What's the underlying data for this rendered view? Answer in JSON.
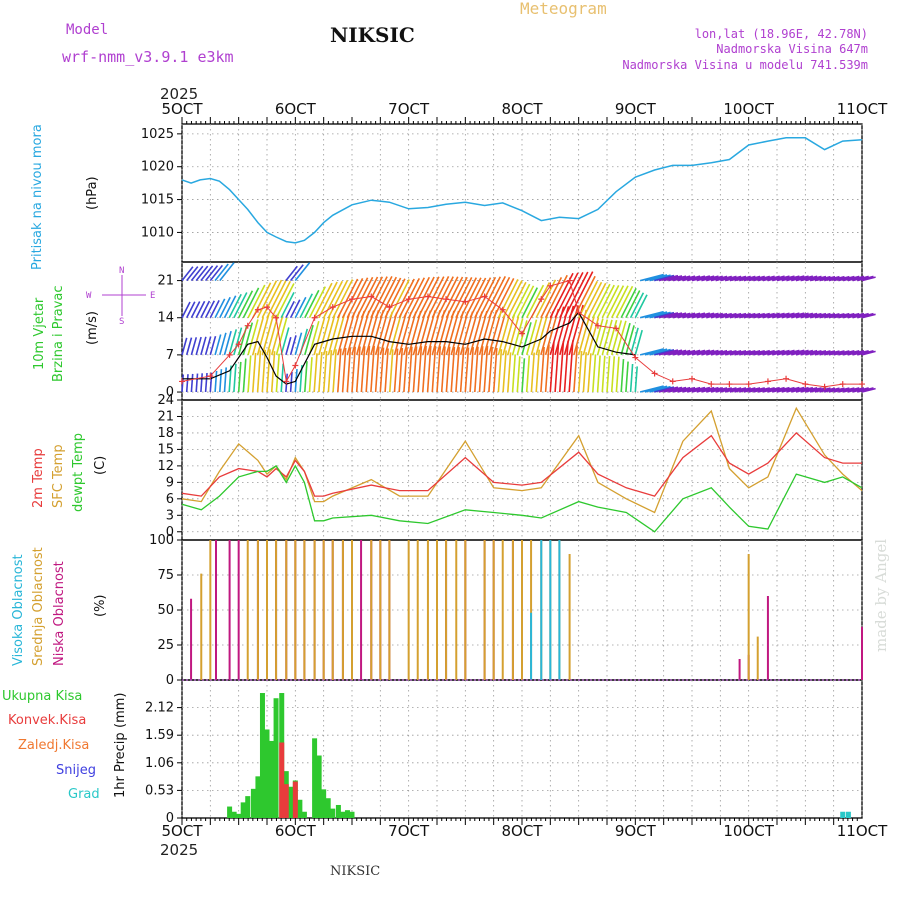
{
  "header": {
    "model_label": "Model",
    "model_name": "wrf-nmm_v3.9.1 e3km",
    "station": "NIKSIC",
    "product": "Meteogram",
    "coords": "lon,lat (18.96E, 42.78N)",
    "elevation": "Nadmorska Visina 647m",
    "model_elevation": "Nadmorska Visina u modelu 741.539m"
  },
  "footer": {
    "station": "NIKSIC",
    "credit": "made by Angel"
  },
  "colors": {
    "pressure": "#29a8e0",
    "temp": "#e83c3c",
    "sfc": "#d4a030",
    "dew": "#2ec82e",
    "high_cloud": "#29b6d8",
    "mid_cloud": "#d4a030",
    "low_cloud": "#c01880",
    "total_precip": "#2ec82e",
    "conv_precip": "#e83c3c",
    "frz_precip": "#f07830",
    "snow": "#4040e0",
    "hail": "#29c8c8",
    "header_purple": "#b040d0",
    "header_gold": "#e8c070"
  },
  "time_axis": {
    "year": "2025",
    "ticks": [
      "5OCT",
      "6OCT",
      "7OCT",
      "8OCT",
      "9OCT",
      "10OCT",
      "11OCT"
    ]
  },
  "chart_data": [
    {
      "type": "line",
      "name": "pressure",
      "ylabel": "Pritisak na nivou mora",
      "unit": "(hPa)",
      "yticks": [
        1010,
        1015,
        1020,
        1025
      ],
      "ylim": [
        1005.5,
        1026.5
      ],
      "x": [
        0,
        0.08,
        0.16,
        0.25,
        0.33,
        0.42,
        0.5,
        0.58,
        0.67,
        0.75,
        0.83,
        0.92,
        1.0,
        1.08,
        1.17,
        1.25,
        1.33,
        1.5,
        1.67,
        1.83,
        2.0,
        2.17,
        2.33,
        2.5,
        2.67,
        2.83,
        3.0,
        3.17,
        3.33,
        3.5,
        3.67,
        3.83,
        4.0,
        4.17,
        4.33,
        4.5,
        4.67,
        4.83,
        5.0,
        5.17,
        5.33,
        5.5,
        5.67,
        5.83,
        6.0
      ],
      "values": [
        1018,
        1017.5,
        1018,
        1018.2,
        1017.8,
        1016.5,
        1015,
        1013.5,
        1011.5,
        1010,
        1009.3,
        1008.6,
        1008.4,
        1008.8,
        1010,
        1011.5,
        1012.6,
        1014.2,
        1014.9,
        1014.6,
        1013.6,
        1013.8,
        1014.3,
        1014.6,
        1014.1,
        1014.5,
        1013.3,
        1011.8,
        1012.3,
        1012.1,
        1013.5,
        1016.2,
        1018.4,
        1019.5,
        1020.2,
        1020.2,
        1020.6,
        1021.1,
        1023.3,
        1023.9,
        1024.4,
        1024.4,
        1022.6,
        1023.9,
        1024.1
      ]
    },
    {
      "type": "line",
      "name": "wind",
      "ylabel": "10m Vjetar",
      "ylabel2": "Brzina i Pravac",
      "unit": "(m/s)",
      "compass": {
        "n": "N",
        "s": "S",
        "w": "W",
        "e": "E"
      },
      "yticks": [
        0,
        7,
        14,
        21
      ],
      "ylim": [
        -1.5,
        24.5
      ],
      "series": [
        {
          "name": "speed",
          "color": "#000000",
          "x": [
            0,
            0.25,
            0.42,
            0.5,
            0.58,
            0.67,
            0.75,
            0.83,
            0.92,
            1.0,
            1.17,
            1.33,
            1.5,
            1.67,
            1.83,
            2.0,
            2.17,
            2.33,
            2.5,
            2.67,
            2.83,
            3.0,
            3.17,
            3.25,
            3.42,
            3.5,
            3.67,
            3.83,
            4.0
          ],
          "values": [
            2.5,
            2.5,
            4,
            6.5,
            9,
            9.5,
            6.5,
            3,
            1.5,
            2,
            9,
            10,
            10.5,
            10.5,
            9.5,
            9,
            9.5,
            9.5,
            9,
            10,
            9.5,
            8.5,
            10,
            11.5,
            13,
            15,
            8.5,
            7.5,
            7
          ]
        },
        {
          "name": "gust",
          "color": "#e83c3c",
          "x": [
            0,
            0.25,
            0.42,
            0.5,
            0.58,
            0.67,
            0.75,
            0.83,
            0.92,
            1.0,
            1.17,
            1.33,
            1.5,
            1.67,
            1.83,
            2.0,
            2.17,
            2.33,
            2.5,
            2.67,
            2.83,
            3.0,
            3.17,
            3.25,
            3.42,
            3.5,
            3.67,
            3.83,
            4.0,
            4.17,
            4.33,
            4.5,
            4.67,
            4.83,
            5.0,
            5.17,
            5.33,
            5.5,
            5.67,
            5.83,
            6.0
          ],
          "values": [
            2,
            3,
            7,
            9,
            12.5,
            15.5,
            16,
            14,
            2,
            5,
            14,
            16,
            17.5,
            18,
            16,
            17.5,
            18,
            17.5,
            17,
            18,
            15.5,
            11,
            17.5,
            20,
            21,
            15,
            12.5,
            12,
            6.5,
            3.5,
            2,
            2.5,
            1.5,
            1.5,
            1.5,
            2,
            2.5,
            1.5,
            1,
            1.5,
            1.5
          ]
        }
      ]
    },
    {
      "type": "line",
      "name": "temperature",
      "ylabels": [
        "2m Temp",
        "SFC Temp",
        "dewpt Temp"
      ],
      "unit": "(C)",
      "yticks": [
        0,
        3,
        6,
        9,
        12,
        15,
        18,
        21,
        24
      ],
      "ylim": [
        -1.5,
        24
      ],
      "x": [
        0,
        0.17,
        0.33,
        0.5,
        0.67,
        0.75,
        0.83,
        0.92,
        1.0,
        1.08,
        1.17,
        1.25,
        1.33,
        1.67,
        1.92,
        2.17,
        2.5,
        2.75,
        3.0,
        3.17,
        3.5,
        3.67,
        3.92,
        4.17,
        4.42,
        4.67,
        4.83,
        5.0,
        5.17,
        5.42,
        5.67,
        5.83,
        6.0
      ],
      "series": [
        {
          "name": "2m Temp",
          "color": "#e83c3c",
          "values": [
            7,
            6.5,
            10,
            11.5,
            11,
            10,
            11.5,
            10,
            13,
            11,
            6.5,
            6.5,
            7,
            8.5,
            7.5,
            7.5,
            13.5,
            9,
            8.5,
            9,
            14.5,
            10.5,
            8,
            6.5,
            13.5,
            17.5,
            12.5,
            10.5,
            12.5,
            18,
            13.5,
            12.5,
            12.5
          ]
        },
        {
          "name": "SFC Temp",
          "color": "#d4a030",
          "values": [
            6,
            5.5,
            11,
            16,
            13,
            10.5,
            12,
            9.5,
            13.5,
            11,
            5.5,
            5.5,
            6.5,
            9.5,
            6.5,
            6.5,
            16.5,
            8,
            7.5,
            8,
            17.5,
            9,
            6,
            3.5,
            16.5,
            22,
            11.5,
            8,
            10,
            22.5,
            14,
            10.5,
            7.5
          ]
        },
        {
          "name": "dewpt Temp",
          "color": "#2ec82e",
          "values": [
            5,
            4,
            6.5,
            10,
            11,
            11,
            12,
            9,
            12,
            9,
            2,
            2,
            2.5,
            3,
            2,
            1.5,
            4,
            3.5,
            3,
            2.5,
            5.5,
            4.5,
            3.5,
            0,
            6,
            8,
            4.5,
            1,
            0.5,
            10.5,
            9,
            10,
            8
          ]
        }
      ]
    },
    {
      "type": "bar",
      "name": "cloud_cover",
      "ylabels": [
        "Visoka Oblacnost",
        "Srednja Oblacnost",
        "Niska Oblacnost"
      ],
      "unit": "(%)",
      "yticks": [
        0,
        25,
        50,
        75,
        100
      ],
      "ylim": [
        0,
        100
      ],
      "series": [
        {
          "name": "Niska Oblacnost",
          "color": "#c01880",
          "x": [
            0.08,
            0.3,
            0.42,
            0.5,
            0.67,
            0.75,
            0.83,
            0.92,
            1.0,
            1.08,
            1.17,
            1.25,
            1.33,
            1.42,
            1.5,
            1.58,
            1.67,
            1.75,
            1.83,
            2.33,
            2.5,
            2.67,
            2.75,
            2.92,
            3.0,
            4.92,
            5.0,
            5.17,
            6.0
          ],
          "values": [
            58,
            100,
            100,
            100,
            100,
            100,
            100,
            100,
            100,
            100,
            100,
            100,
            100,
            100,
            100,
            100,
            100,
            100,
            100,
            100,
            100,
            100,
            100,
            100,
            100,
            15,
            18,
            60,
            38
          ]
        },
        {
          "name": "Srednja Oblacnost",
          "color": "#d4a030",
          "x": [
            0.17,
            0.25,
            0.58,
            0.67,
            0.75,
            0.83,
            0.92,
            1.0,
            1.08,
            1.17,
            1.25,
            1.33,
            1.42,
            1.5,
            1.67,
            1.75,
            1.83,
            2.0,
            2.08,
            2.17,
            2.25,
            2.33,
            2.42,
            2.5,
            2.67,
            2.75,
            2.83,
            2.92,
            3.0,
            3.08,
            3.17,
            3.25,
            3.33,
            3.42,
            5.0,
            5.08
          ],
          "values": [
            76,
            100,
            100,
            100,
            100,
            100,
            100,
            100,
            100,
            100,
            100,
            100,
            100,
            100,
            100,
            100,
            100,
            100,
            100,
            100,
            100,
            100,
            100,
            100,
            100,
            100,
            100,
            100,
            100,
            100,
            100,
            100,
            100,
            90,
            90,
            31
          ]
        },
        {
          "name": "Visoka Oblacnost",
          "color": "#29b6d8",
          "x": [
            3.08,
            3.17,
            3.25,
            3.33
          ],
          "values": [
            48,
            100,
            100,
            100
          ]
        }
      ]
    },
    {
      "type": "bar",
      "name": "precipitation",
      "ylabel": "1hr Precip",
      "unit": "(mm)",
      "legend": [
        "Ukupna Kisa",
        "Konvek.Kisa",
        "Zaledj.Kisa",
        "Snijeg",
        "Grad"
      ],
      "yticks": [
        0,
        0.53,
        1.06,
        1.59,
        2.12
      ],
      "ylim": [
        0,
        2.65
      ],
      "series": [
        {
          "name": "Ukupna Kisa",
          "color": "#2ec82e",
          "x": [
            0.42,
            0.46,
            0.5,
            0.54,
            0.58,
            0.63,
            0.67,
            0.71,
            0.75,
            0.79,
            0.83,
            0.88,
            0.92,
            0.96,
            1.0,
            1.04,
            1.08,
            1.17,
            1.21,
            1.25,
            1.29,
            1.33,
            1.38,
            1.42,
            1.46,
            1.5
          ],
          "values": [
            0.22,
            0.12,
            0.08,
            0.3,
            0.42,
            0.56,
            0.8,
            2.4,
            1.7,
            1.48,
            2.3,
            2.4,
            0.9,
            0.6,
            0.72,
            0.35,
            0.12,
            1.53,
            1.2,
            0.55,
            0.38,
            0.18,
            0.25,
            0.12,
            0.15,
            0.12
          ]
        },
        {
          "name": "Konvek.Kisa",
          "color": "#e83c3c",
          "x": [
            0.88,
            0.92,
            1.0
          ],
          "values": [
            1.45,
            0.65,
            0.7
          ]
        },
        {
          "name": "Zaledj.Kisa",
          "color": "#f07830",
          "x": [],
          "values": []
        },
        {
          "name": "Snijeg",
          "color": "#4040e0",
          "x": [],
          "values": []
        },
        {
          "name": "Grad",
          "color": "#29c8c8",
          "x": [
            5.83,
            5.88
          ],
          "values": [
            0.12,
            0.12
          ]
        }
      ]
    }
  ]
}
